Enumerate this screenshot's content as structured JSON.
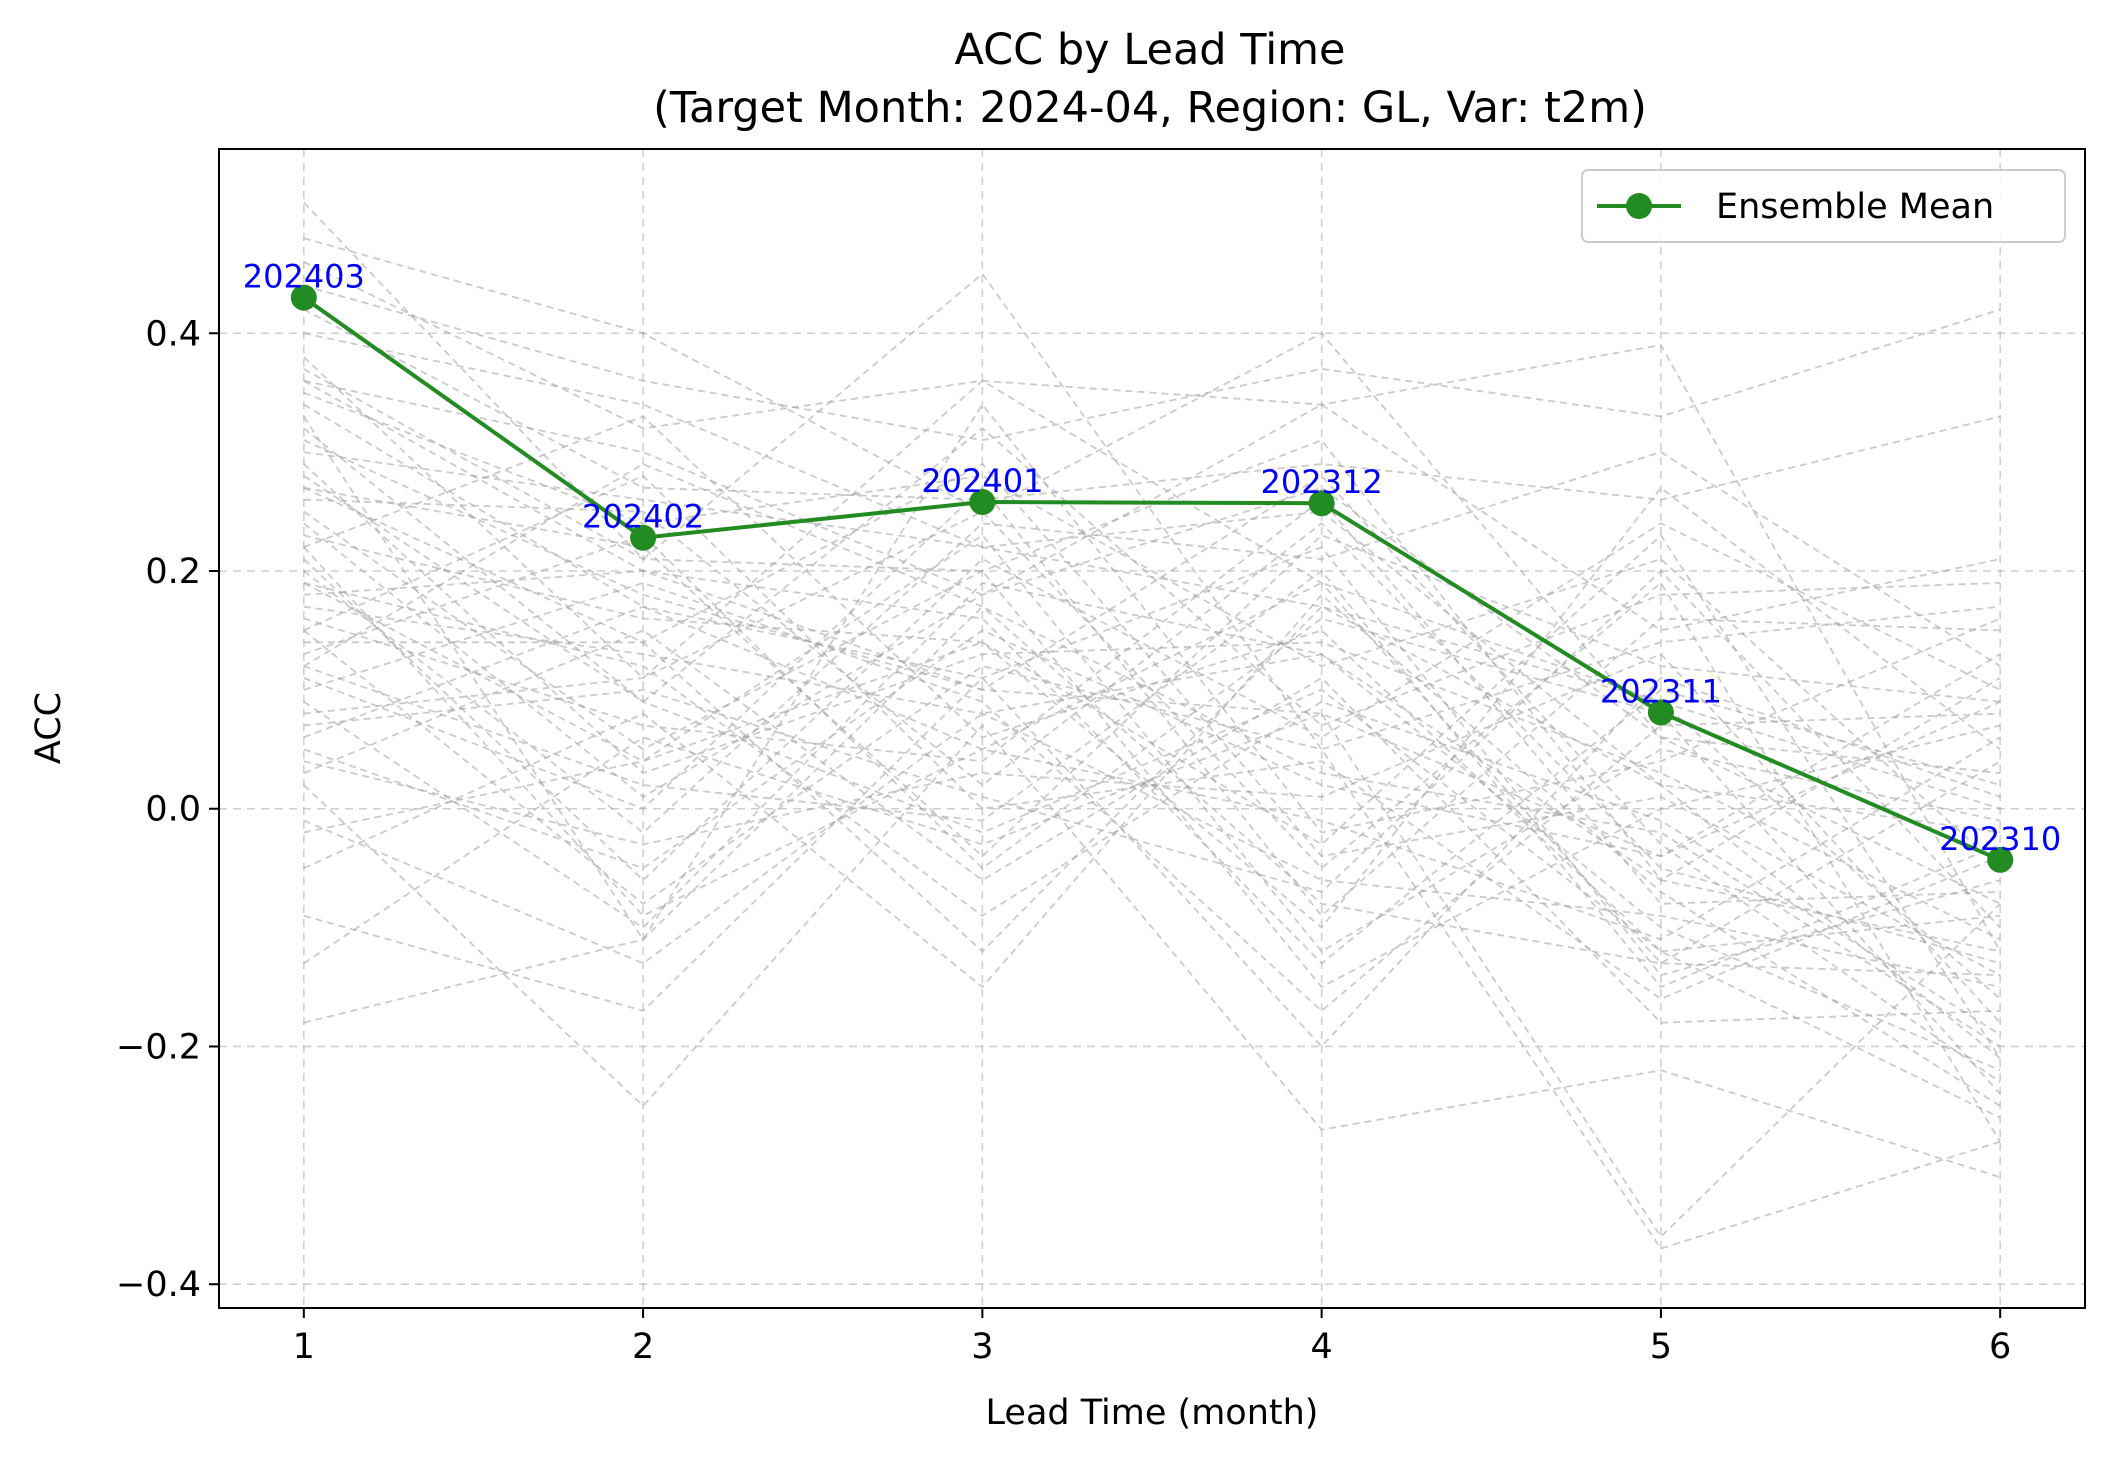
{
  "chart_data": {
    "type": "line",
    "title_line1": "ACC by Lead Time",
    "title_line2": "(Target Month: 2024-04, Region: GL, Var: t2m)",
    "xlabel": "Lead Time (month)",
    "ylabel": "ACC",
    "x": [
      1,
      2,
      3,
      4,
      5,
      6
    ],
    "xlim": [
      0.75,
      6.25
    ],
    "ylim": [
      -0.42,
      0.555
    ],
    "xticks": [
      1,
      2,
      3,
      4,
      5,
      6
    ],
    "yticks": [
      -0.4,
      -0.2,
      0.0,
      0.2,
      0.4
    ],
    "ytick_labels": [
      "−0.4",
      "−0.2",
      "0.0",
      "0.2",
      "0.4"
    ],
    "grid": true,
    "legend_position": "top-right",
    "series": [
      {
        "name": "Ensemble Mean",
        "color": "#228b22",
        "values": [
          0.43,
          0.228,
          0.258,
          0.257,
          0.081,
          -0.043
        ],
        "point_labels": [
          "202403",
          "202402",
          "202401",
          "202312",
          "202311",
          "202310"
        ],
        "point_label_color": "#0000ff"
      }
    ],
    "background_members": {
      "color": "#a0a0a0",
      "style": "dashed",
      "lines": [
        [
          0.51,
          0.21,
          0.45,
          0.05,
          -0.37,
          -0.28
        ],
        [
          0.48,
          0.4,
          0.25,
          0.4,
          0.06,
          -0.08
        ],
        [
          0.46,
          0.32,
          0.36,
          0.34,
          0.39,
          -0.12
        ],
        [
          0.44,
          0.36,
          0.31,
          0.37,
          0.33,
          0.42
        ],
        [
          0.42,
          0.27,
          0.26,
          0.29,
          0.26,
          0.33
        ],
        [
          0.4,
          0.34,
          0.22,
          0.25,
          0.02,
          -0.21
        ],
        [
          0.38,
          0.11,
          0.36,
          0.19,
          -0.13,
          0.04
        ],
        [
          0.36,
          0.3,
          0.18,
          0.34,
          0.15,
          0.21
        ],
        [
          0.35,
          0.24,
          0.28,
          0.12,
          0.21,
          -0.05
        ],
        [
          0.33,
          -0.11,
          0.34,
          -0.02,
          0.04,
          0.16
        ],
        [
          0.31,
          0.18,
          0.1,
          0.28,
          -0.03,
          -0.23
        ],
        [
          0.3,
          0.26,
          0.22,
          0.17,
          0.09,
          -0.16
        ],
        [
          0.28,
          0.09,
          0.32,
          0.07,
          0.18,
          0.19
        ],
        [
          0.27,
          0.22,
          -0.04,
          0.23,
          0.12,
          0.09
        ],
        [
          0.25,
          0.05,
          0.2,
          0.31,
          -0.06,
          -0.12
        ],
        [
          0.23,
          0.16,
          0.14,
          -0.1,
          0.27,
          0.05
        ],
        [
          0.22,
          0.33,
          0.06,
          0.15,
          -0.12,
          -0.26
        ],
        [
          0.2,
          -0.02,
          0.24,
          0.21,
          0.3,
          0.12
        ],
        [
          0.19,
          0.12,
          -0.09,
          0.09,
          -0.01,
          -0.19
        ],
        [
          0.18,
          0.2,
          0.16,
          -0.13,
          0.1,
          0.02
        ],
        [
          0.16,
          0.07,
          0.04,
          0.26,
          -0.08,
          -0.07
        ],
        [
          0.15,
          -0.08,
          0.12,
          0.05,
          0.14,
          0.17
        ],
        [
          0.14,
          0.14,
          0.29,
          -0.04,
          0.01,
          -0.14
        ],
        [
          0.12,
          0.02,
          -0.01,
          0.2,
          -0.15,
          -0.03
        ],
        [
          0.1,
          0.19,
          0.09,
          -0.17,
          0.07,
          0.08
        ],
        [
          0.09,
          -0.1,
          0.19,
          0.13,
          -0.1,
          -0.22
        ],
        [
          0.07,
          0.1,
          0.01,
          -0.07,
          0.2,
          -0.1
        ],
        [
          0.05,
          -0.05,
          0.15,
          0.02,
          -0.04,
          0.13
        ],
        [
          0.03,
          0.15,
          -0.06,
          0.11,
          -0.18,
          -0.17
        ],
        [
          0.02,
          -0.25,
          0.07,
          -0.27,
          -0.22,
          -0.31
        ],
        [
          -0.02,
          0.04,
          0.23,
          -0.12,
          0.05,
          -0.01
        ],
        [
          -0.05,
          0.08,
          -0.15,
          0.18,
          -0.07,
          -0.25
        ],
        [
          -0.09,
          -0.17,
          0.11,
          -0.2,
          0.11,
          0.01
        ],
        [
          -0.13,
          0.06,
          -0.03,
          0.08,
          -0.36,
          -0.08
        ],
        [
          -0.18,
          -0.11,
          0.17,
          0.03,
          -0.02,
          -0.2
        ],
        [
          0.34,
          0.17,
          0.05,
          -0.01,
          -0.11,
          0.06
        ],
        [
          0.29,
          0.03,
          0.13,
          0.14,
          0.03,
          -0.11
        ],
        [
          0.26,
          0.25,
          0.02,
          0.24,
          -0.05,
          -0.13
        ],
        [
          0.21,
          -0.06,
          0.21,
          0.06,
          0.24,
          0.1
        ],
        [
          0.17,
          0.13,
          0.08,
          -0.06,
          -0.09,
          -0.15
        ],
        [
          0.13,
          0.23,
          -0.05,
          0.16,
          0.08,
          -0.24
        ],
        [
          0.11,
          0.0,
          0.27,
          -0.09,
          0.16,
          0.15
        ],
        [
          0.06,
          0.17,
          0.11,
          0.22,
          -0.14,
          -0.06
        ],
        [
          0.04,
          -0.03,
          0.03,
          0.01,
          0.13,
          -0.18
        ],
        [
          0.37,
          0.21,
          0.2,
          -0.15,
          0.0,
          0.07
        ],
        [
          0.32,
          0.09,
          -0.02,
          0.1,
          -0.12,
          -0.09
        ],
        [
          0.24,
          0.01,
          0.18,
          0.27,
          0.06,
          0.03
        ],
        [
          0.15,
          0.28,
          0.0,
          0.04,
          -0.16,
          -0.04
        ],
        [
          0.08,
          0.11,
          0.25,
          -0.05,
          0.19,
          -0.28
        ],
        [
          -0.01,
          -0.13,
          0.08,
          0.13,
          -0.06,
          0.11
        ],
        [
          0.27,
          0.14,
          -0.12,
          0.17,
          0.02,
          -0.02
        ],
        [
          0.19,
          0.04,
          0.14,
          -0.03,
          0.23,
          -0.21
        ],
        [
          0.36,
          0.2,
          0.1,
          0.08,
          -0.04,
          0.09
        ],
        [
          0.12,
          0.29,
          0.17,
          -0.08,
          -0.13,
          -0.14
        ],
        [
          0.22,
          -0.09,
          0.05,
          0.19,
          0.09,
          0.0
        ]
      ]
    }
  }
}
